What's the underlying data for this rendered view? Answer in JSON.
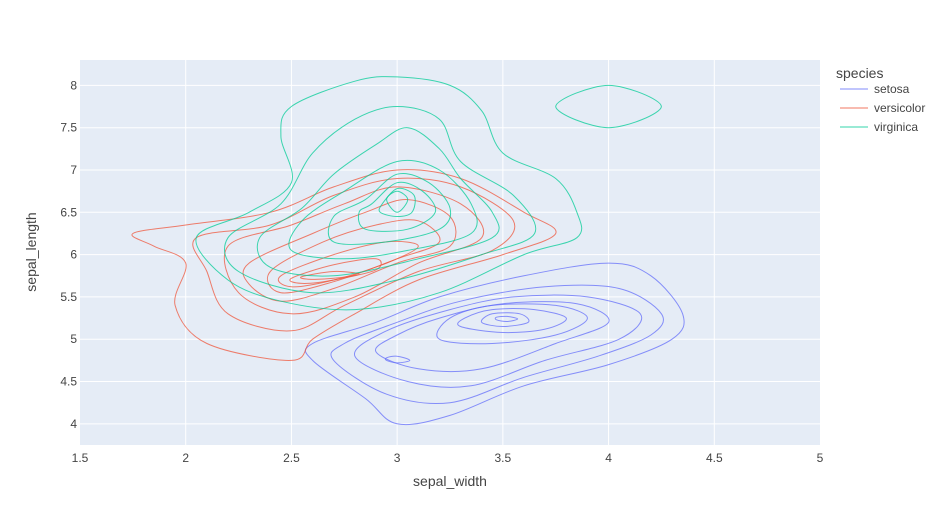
{
  "chart_data": {
    "type": "density_contour",
    "xlabel": "sepal_width",
    "ylabel": "sepal_length",
    "xlim": [
      1.5,
      5
    ],
    "ylim": [
      3.75,
      8.3
    ],
    "x_ticks": [
      "1.5",
      "2",
      "2.5",
      "3",
      "3.5",
      "4",
      "4.5",
      "5"
    ],
    "y_ticks": [
      "4",
      "4.5",
      "5",
      "5.5",
      "6",
      "6.5",
      "7",
      "7.5",
      "8"
    ],
    "grid": true,
    "legend": {
      "title": "species",
      "placement": "right"
    },
    "series": [
      {
        "name": "setosa",
        "color": "#636efa",
        "contours": [
          [
            [
              2.6,
              4.75
            ],
            [
              2.85,
              4.3
            ],
            [
              3.0,
              4.0
            ],
            [
              3.25,
              4.1
            ],
            [
              3.6,
              4.45
            ],
            [
              4.0,
              4.7
            ],
            [
              4.3,
              5.0
            ],
            [
              4.35,
              5.3
            ],
            [
              4.2,
              5.75
            ],
            [
              4.0,
              5.9
            ],
            [
              3.6,
              5.75
            ],
            [
              3.2,
              5.5
            ],
            [
              2.9,
              5.2
            ],
            [
              2.6,
              4.95
            ]
          ],
          [
            [
              2.7,
              4.75
            ],
            [
              2.95,
              4.35
            ],
            [
              3.25,
              4.25
            ],
            [
              3.6,
              4.55
            ],
            [
              3.95,
              4.8
            ],
            [
              4.2,
              5.05
            ],
            [
              4.25,
              5.3
            ],
            [
              4.05,
              5.6
            ],
            [
              3.7,
              5.62
            ],
            [
              3.3,
              5.45
            ],
            [
              3.0,
              5.2
            ],
            [
              2.75,
              4.95
            ]
          ],
          [
            [
              2.8,
              4.8
            ],
            [
              3.05,
              4.5
            ],
            [
              3.35,
              4.45
            ],
            [
              3.7,
              4.75
            ],
            [
              4.05,
              5.0
            ],
            [
              4.15,
              5.3
            ],
            [
              3.9,
              5.5
            ],
            [
              3.55,
              5.5
            ],
            [
              3.25,
              5.35
            ],
            [
              2.95,
              5.1
            ]
          ],
          [
            [
              2.9,
              4.85
            ],
            [
              3.1,
              4.65
            ],
            [
              3.4,
              4.65
            ],
            [
              3.75,
              4.95
            ],
            [
              4.0,
              5.2
            ],
            [
              3.85,
              5.42
            ],
            [
              3.5,
              5.42
            ],
            [
              3.2,
              5.25
            ],
            [
              3.0,
              5.05
            ]
          ],
          [
            [
              3.2,
              5.0
            ],
            [
              3.45,
              4.95
            ],
            [
              3.75,
              5.05
            ],
            [
              3.9,
              5.25
            ],
            [
              3.75,
              5.4
            ],
            [
              3.45,
              5.4
            ],
            [
              3.25,
              5.25
            ]
          ],
          [
            [
              3.3,
              5.15
            ],
            [
              3.5,
              5.08
            ],
            [
              3.7,
              5.12
            ],
            [
              3.8,
              5.25
            ],
            [
              3.65,
              5.35
            ],
            [
              3.45,
              5.35
            ],
            [
              3.32,
              5.25
            ]
          ],
          [
            [
              3.4,
              5.2
            ],
            [
              3.5,
              5.15
            ],
            [
              3.62,
              5.2
            ],
            [
              3.58,
              5.3
            ],
            [
              3.45,
              5.3
            ]
          ],
          [
            [
              3.47,
              5.23
            ],
            [
              3.52,
              5.21
            ],
            [
              3.57,
              5.24
            ],
            [
              3.52,
              5.27
            ],
            [
              3.47,
              5.26
            ]
          ],
          [
            [
              2.95,
              4.75
            ],
            [
              3.0,
              4.72
            ],
            [
              3.06,
              4.75
            ],
            [
              3.0,
              4.8
            ],
            [
              2.95,
              4.78
            ]
          ]
        ]
      },
      {
        "name": "versicolor",
        "color": "#ef553b",
        "contours": [
          [
            [
              1.75,
              6.25
            ],
            [
              2.0,
              6.35
            ],
            [
              2.4,
              6.5
            ],
            [
              2.7,
              6.8
            ],
            [
              3.0,
              7.0
            ],
            [
              3.3,
              6.9
            ],
            [
              3.6,
              6.5
            ],
            [
              3.75,
              6.25
            ],
            [
              3.5,
              6.0
            ],
            [
              3.1,
              5.7
            ],
            [
              2.8,
              5.3
            ],
            [
              2.6,
              5.0
            ],
            [
              2.5,
              4.75
            ],
            [
              2.1,
              4.95
            ],
            [
              1.95,
              5.4
            ],
            [
              2.0,
              5.9
            ],
            [
              1.85,
              6.1
            ]
          ],
          [
            [
              2.05,
              6.2
            ],
            [
              2.4,
              6.35
            ],
            [
              2.7,
              6.7
            ],
            [
              3.0,
              6.9
            ],
            [
              3.3,
              6.8
            ],
            [
              3.55,
              6.4
            ],
            [
              3.45,
              6.05
            ],
            [
              3.1,
              5.8
            ],
            [
              2.75,
              5.4
            ],
            [
              2.5,
              5.1
            ],
            [
              2.2,
              5.3
            ],
            [
              2.1,
              5.8
            ]
          ],
          [
            [
              2.2,
              6.1
            ],
            [
              2.5,
              6.35
            ],
            [
              2.75,
              6.6
            ],
            [
              3.0,
              6.8
            ],
            [
              3.3,
              6.6
            ],
            [
              3.4,
              6.2
            ],
            [
              3.1,
              5.9
            ],
            [
              2.8,
              5.5
            ],
            [
              2.5,
              5.3
            ],
            [
              2.25,
              5.55
            ]
          ],
          [
            [
              2.3,
              5.9
            ],
            [
              2.6,
              6.25
            ],
            [
              2.85,
              6.5
            ],
            [
              3.05,
              6.65
            ],
            [
              3.25,
              6.45
            ],
            [
              3.25,
              6.1
            ],
            [
              3.0,
              5.9
            ],
            [
              2.7,
              5.6
            ],
            [
              2.45,
              5.45
            ],
            [
              2.3,
              5.65
            ]
          ],
          [
            [
              2.4,
              5.8
            ],
            [
              2.65,
              6.15
            ],
            [
              2.9,
              6.35
            ],
            [
              3.1,
              6.4
            ],
            [
              3.2,
              6.15
            ],
            [
              3.0,
              5.95
            ],
            [
              2.7,
              5.68
            ],
            [
              2.45,
              5.55
            ]
          ],
          [
            [
              2.45,
              5.75
            ],
            [
              2.7,
              6.0
            ],
            [
              2.95,
              6.15
            ],
            [
              3.1,
              6.1
            ],
            [
              2.95,
              5.9
            ],
            [
              2.7,
              5.7
            ],
            [
              2.5,
              5.62
            ]
          ],
          [
            [
              2.5,
              5.72
            ],
            [
              2.7,
              5.88
            ],
            [
              2.9,
              5.95
            ],
            [
              2.9,
              5.82
            ],
            [
              2.7,
              5.7
            ],
            [
              2.55,
              5.66
            ]
          ],
          [
            [
              2.55,
              5.74
            ],
            [
              2.7,
              5.8
            ],
            [
              2.82,
              5.77
            ],
            [
              2.7,
              5.72
            ],
            [
              2.58,
              5.71
            ]
          ]
        ]
      },
      {
        "name": "virginica",
        "color": "#00cc96",
        "contours": [
          [
            [
              2.5,
              7.75
            ],
            [
              2.8,
              8.05
            ],
            [
              3.0,
              8.1
            ],
            [
              3.25,
              8.0
            ],
            [
              3.4,
              7.7
            ],
            [
              3.5,
              7.2
            ],
            [
              3.75,
              6.9
            ],
            [
              3.85,
              6.5
            ],
            [
              3.85,
              6.2
            ],
            [
              3.6,
              6.0
            ],
            [
              3.2,
              5.55
            ],
            [
              2.8,
              5.35
            ],
            [
              2.45,
              5.45
            ],
            [
              2.2,
              5.7
            ],
            [
              2.05,
              6.2
            ],
            [
              2.3,
              6.5
            ],
            [
              2.5,
              6.85
            ],
            [
              2.45,
              7.4
            ]
          ],
          [
            [
              2.6,
              7.2
            ],
            [
              2.8,
              7.6
            ],
            [
              3.0,
              7.75
            ],
            [
              3.2,
              7.6
            ],
            [
              3.3,
              7.1
            ],
            [
              3.55,
              6.7
            ],
            [
              3.65,
              6.25
            ],
            [
              3.4,
              6.0
            ],
            [
              3.0,
              5.7
            ],
            [
              2.6,
              5.55
            ],
            [
              2.25,
              5.8
            ],
            [
              2.2,
              6.2
            ],
            [
              2.45,
              6.6
            ]
          ],
          [
            [
              2.7,
              6.95
            ],
            [
              2.9,
              7.3
            ],
            [
              3.05,
              7.5
            ],
            [
              3.2,
              7.25
            ],
            [
              3.3,
              6.9
            ],
            [
              3.45,
              6.5
            ],
            [
              3.45,
              6.2
            ],
            [
              3.1,
              5.95
            ],
            [
              2.7,
              5.75
            ],
            [
              2.4,
              5.85
            ],
            [
              2.35,
              6.2
            ],
            [
              2.55,
              6.55
            ]
          ],
          [
            [
              2.75,
              6.75
            ],
            [
              3.0,
              7.1
            ],
            [
              3.2,
              7.0
            ],
            [
              3.35,
              6.6
            ],
            [
              3.35,
              6.25
            ],
            [
              3.05,
              6.05
            ],
            [
              2.75,
              5.95
            ],
            [
              2.5,
              6.05
            ],
            [
              2.55,
              6.4
            ]
          ],
          [
            [
              2.85,
              6.65
            ],
            [
              3.0,
              6.95
            ],
            [
              3.15,
              6.85
            ],
            [
              3.25,
              6.55
            ],
            [
              3.2,
              6.3
            ],
            [
              2.95,
              6.15
            ],
            [
              2.7,
              6.15
            ],
            [
              2.7,
              6.45
            ]
          ],
          [
            [
              2.88,
              6.6
            ],
            [
              3.0,
              6.85
            ],
            [
              3.12,
              6.75
            ],
            [
              3.18,
              6.5
            ],
            [
              3.05,
              6.3
            ],
            [
              2.85,
              6.3
            ],
            [
              2.82,
              6.5
            ]
          ],
          [
            [
              2.93,
              6.6
            ],
            [
              3.0,
              6.78
            ],
            [
              3.08,
              6.7
            ],
            [
              3.07,
              6.5
            ],
            [
              3.0,
              6.45
            ],
            [
              2.92,
              6.5
            ]
          ],
          [
            [
              3.0,
              6.5
            ],
            [
              3.05,
              6.65
            ],
            [
              3.0,
              6.75
            ],
            [
              2.95,
              6.65
            ]
          ],
          [
            [
              3.75,
              7.75
            ],
            [
              4.0,
              8.0
            ],
            [
              4.25,
              7.75
            ],
            [
              4.0,
              7.5
            ]
          ]
        ]
      }
    ]
  }
}
